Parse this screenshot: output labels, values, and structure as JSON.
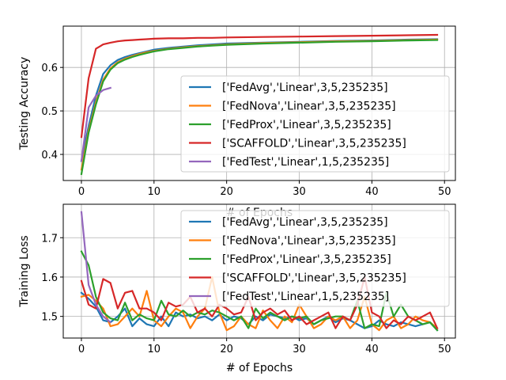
{
  "chart_data": [
    {
      "type": "line",
      "xlabel": "# of Epochs",
      "ylabel": "Testing Accuracy",
      "xlim": [
        -2.5,
        51.5
      ],
      "ylim": [
        0.34,
        0.695
      ],
      "xticks": [
        0,
        10,
        20,
        30,
        40,
        50
      ],
      "yticks": [
        0.4,
        0.5,
        0.6
      ],
      "ytick_labels": [
        "0.4",
        "0.5",
        "0.6"
      ],
      "grid": true,
      "legend_position": "right",
      "series": [
        {
          "name": "['FedAvg','Linear',3,5,235235]",
          "color": "#1f77b4",
          "x": [
            0,
            1,
            2,
            3,
            4,
            5,
            6,
            7,
            8,
            9,
            10,
            12,
            14,
            16,
            18,
            20,
            25,
            30,
            35,
            40,
            45,
            49
          ],
          "y": [
            0.385,
            0.465,
            0.535,
            0.585,
            0.605,
            0.617,
            0.624,
            0.629,
            0.633,
            0.637,
            0.641,
            0.645,
            0.648,
            0.651,
            0.653,
            0.655,
            0.657,
            0.659,
            0.661,
            0.662,
            0.664,
            0.665
          ]
        },
        {
          "name": "['FedNova','Linear',3,5,235235]",
          "color": "#ff7f0e",
          "x": [
            0,
            1,
            2,
            3,
            4,
            5,
            6,
            7,
            8,
            9,
            10,
            12,
            14,
            16,
            18,
            20,
            25,
            30,
            35,
            40,
            45,
            49
          ],
          "y": [
            0.365,
            0.455,
            0.52,
            0.572,
            0.598,
            0.612,
            0.62,
            0.626,
            0.631,
            0.635,
            0.638,
            0.643,
            0.646,
            0.649,
            0.651,
            0.653,
            0.656,
            0.658,
            0.66,
            0.661,
            0.663,
            0.664
          ]
        },
        {
          "name": "['FedProx','Linear',3,5,235235]",
          "color": "#2ca02c",
          "x": [
            0,
            1,
            2,
            3,
            4,
            5,
            6,
            7,
            8,
            9,
            10,
            12,
            14,
            16,
            18,
            20,
            25,
            30,
            35,
            40,
            45,
            49
          ],
          "y": [
            0.355,
            0.45,
            0.515,
            0.568,
            0.595,
            0.61,
            0.618,
            0.624,
            0.629,
            0.633,
            0.637,
            0.642,
            0.645,
            0.648,
            0.65,
            0.652,
            0.655,
            0.657,
            0.659,
            0.66,
            0.662,
            0.663
          ]
        },
        {
          "name": "['SCAFFOLD','Linear',3,5,235235]",
          "color": "#d62728",
          "x": [
            0,
            1,
            2,
            3,
            4,
            5,
            6,
            7,
            8,
            9,
            10,
            12,
            14,
            16,
            18,
            20,
            25,
            30,
            35,
            40,
            45,
            49
          ],
          "y": [
            0.44,
            0.575,
            0.643,
            0.653,
            0.657,
            0.66,
            0.662,
            0.663,
            0.664,
            0.665,
            0.666,
            0.667,
            0.667,
            0.668,
            0.668,
            0.669,
            0.67,
            0.671,
            0.672,
            0.673,
            0.674,
            0.675
          ]
        },
        {
          "name": "['FedTest','Linear',1,5,235235]",
          "color": "#9467bd",
          "x": [
            0,
            1,
            2,
            3,
            4
          ],
          "y": [
            0.385,
            0.508,
            0.535,
            0.548,
            0.553
          ]
        }
      ]
    },
    {
      "type": "line",
      "xlabel": "# of Epochs",
      "ylabel": "Training Loss",
      "xlim": [
        -2.5,
        51.5
      ],
      "ylim": [
        1.445,
        1.785
      ],
      "xticks": [
        0,
        10,
        20,
        30,
        40,
        50
      ],
      "yticks": [
        1.5,
        1.6,
        1.7
      ],
      "ytick_labels": [
        "1.5",
        "1.6",
        "1.7"
      ],
      "grid": true,
      "legend_position": "right",
      "series": [
        {
          "name": "['FedAvg','Linear',3,5,235235]",
          "color": "#1f77b4",
          "x": [
            0,
            1,
            2,
            3,
            4,
            5,
            6,
            7,
            8,
            9,
            10,
            11,
            12,
            13,
            14,
            15,
            16,
            17,
            18,
            19,
            20,
            21,
            22,
            23,
            24,
            25,
            26,
            27,
            28,
            29,
            30,
            31,
            32,
            33,
            34,
            35,
            36,
            37,
            38,
            39,
            40,
            41,
            42,
            43,
            44,
            45,
            46,
            47,
            48,
            49
          ],
          "y": [
            1.56,
            1.545,
            1.525,
            1.49,
            1.485,
            1.5,
            1.52,
            1.475,
            1.495,
            1.48,
            1.475,
            1.5,
            1.475,
            1.51,
            1.5,
            1.505,
            1.495,
            1.5,
            1.49,
            1.505,
            1.49,
            1.5,
            1.495,
            1.48,
            1.5,
            1.49,
            1.505,
            1.5,
            1.495,
            1.5,
            1.49,
            1.495,
            1.48,
            1.49,
            1.5,
            1.485,
            1.495,
            1.49,
            1.48,
            1.47,
            1.475,
            1.49,
            1.48,
            1.475,
            1.485,
            1.48,
            1.475,
            1.48,
            1.485,
            1.465
          ]
        },
        {
          "name": "['FedNova','Linear',3,5,235235]",
          "color": "#ff7f0e",
          "x": [
            0,
            1,
            2,
            3,
            4,
            5,
            6,
            7,
            8,
            9,
            10,
            11,
            12,
            13,
            14,
            15,
            16,
            17,
            18,
            19,
            20,
            21,
            22,
            23,
            24,
            25,
            26,
            27,
            28,
            29,
            30,
            31,
            32,
            33,
            34,
            35,
            36,
            37,
            38,
            39,
            40,
            41,
            42,
            43,
            44,
            45,
            46,
            47,
            48,
            49
          ],
          "y": [
            1.55,
            1.555,
            1.54,
            1.52,
            1.475,
            1.48,
            1.5,
            1.52,
            1.5,
            1.565,
            1.49,
            1.475,
            1.5,
            1.52,
            1.51,
            1.47,
            1.5,
            1.52,
            1.6,
            1.51,
            1.465,
            1.475,
            1.5,
            1.48,
            1.47,
            1.515,
            1.49,
            1.47,
            1.5,
            1.485,
            1.53,
            1.5,
            1.47,
            1.48,
            1.5,
            1.49,
            1.5,
            1.47,
            1.49,
            1.55,
            1.48,
            1.465,
            1.49,
            1.5,
            1.47,
            1.48,
            1.5,
            1.49,
            1.485,
            1.47
          ]
        },
        {
          "name": "['FedProx','Linear',3,5,235235]",
          "color": "#2ca02c",
          "x": [
            0,
            1,
            2,
            3,
            4,
            5,
            6,
            7,
            8,
            9,
            10,
            11,
            12,
            13,
            14,
            15,
            16,
            17,
            18,
            19,
            20,
            21,
            22,
            23,
            24,
            25,
            26,
            27,
            28,
            29,
            30,
            31,
            32,
            33,
            34,
            35,
            36,
            37,
            38,
            39,
            40,
            41,
            42,
            43,
            44,
            45,
            46,
            47,
            48,
            49
          ],
          "y": [
            1.665,
            1.63,
            1.55,
            1.51,
            1.495,
            1.49,
            1.535,
            1.49,
            1.505,
            1.495,
            1.49,
            1.54,
            1.505,
            1.5,
            1.515,
            1.5,
            1.51,
            1.505,
            1.515,
            1.51,
            1.5,
            1.49,
            1.5,
            1.47,
            1.52,
            1.495,
            1.51,
            1.5,
            1.49,
            1.5,
            1.495,
            1.5,
            1.48,
            1.49,
            1.495,
            1.5,
            1.5,
            1.49,
            1.54,
            1.47,
            1.48,
            1.475,
            1.56,
            1.5,
            1.53,
            1.5,
            1.49,
            1.48,
            1.485,
            1.465
          ]
        },
        {
          "name": "['SCAFFOLD','Linear',3,5,235235]",
          "color": "#d62728",
          "x": [
            0,
            1,
            2,
            3,
            4,
            5,
            6,
            7,
            8,
            9,
            10,
            11,
            12,
            13,
            14,
            15,
            16,
            17,
            18,
            19,
            20,
            21,
            22,
            23,
            24,
            25,
            26,
            27,
            28,
            29,
            30,
            31,
            32,
            33,
            34,
            35,
            36,
            37,
            38,
            39,
            40,
            41,
            42,
            43,
            44,
            45,
            46,
            47,
            48,
            49
          ],
          "y": [
            1.59,
            1.53,
            1.52,
            1.595,
            1.585,
            1.52,
            1.56,
            1.565,
            1.52,
            1.52,
            1.51,
            1.49,
            1.535,
            1.525,
            1.53,
            1.55,
            1.51,
            1.52,
            1.5,
            1.53,
            1.52,
            1.505,
            1.51,
            1.55,
            1.49,
            1.51,
            1.52,
            1.505,
            1.515,
            1.49,
            1.5,
            1.48,
            1.49,
            1.5,
            1.51,
            1.47,
            1.5,
            1.49,
            1.53,
            1.6,
            1.51,
            1.5,
            1.47,
            1.49,
            1.48,
            1.5,
            1.49,
            1.5,
            1.51,
            1.47
          ]
        },
        {
          "name": "['FedTest','Linear',1,5,235235]",
          "color": "#9467bd",
          "x": [
            0,
            1,
            2,
            3,
            4
          ],
          "y": [
            1.765,
            1.58,
            1.53,
            1.5,
            1.485
          ]
        }
      ]
    }
  ]
}
